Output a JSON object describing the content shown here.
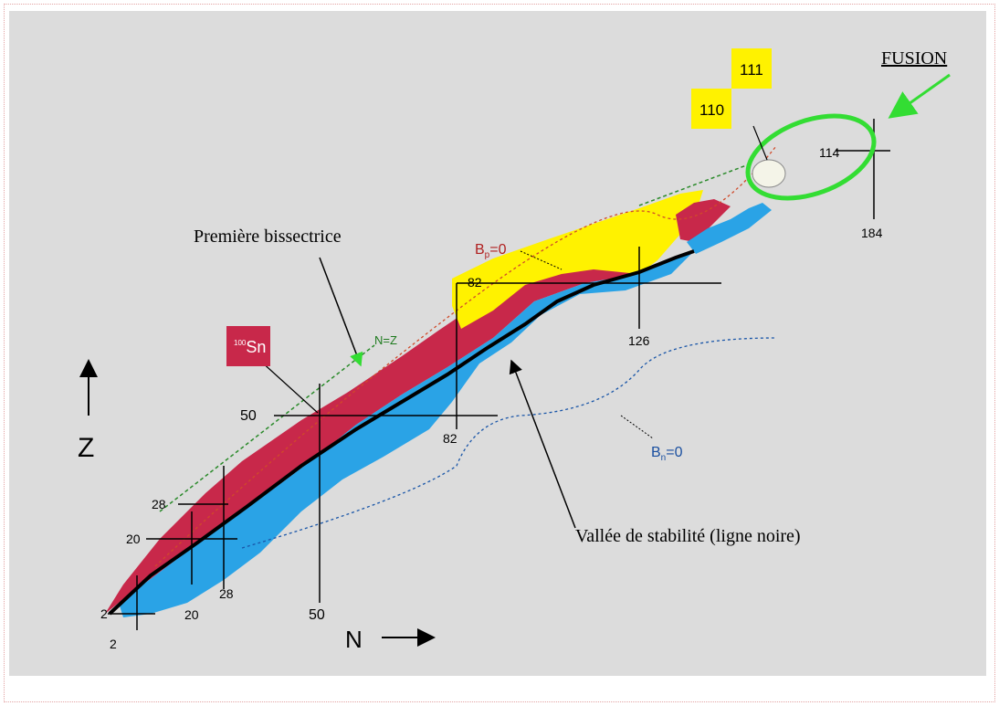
{
  "labels": {
    "fusion": "FUSION",
    "premiere_bissectrice": "Première bissectrice",
    "vallee": "Vallée de stabilité (ligne noire)",
    "z_axis": "Z",
    "n_axis": "N",
    "nz": "N=Z",
    "bp_main": "B",
    "bp_sub": "p",
    "bp_eq": "=0",
    "bn_main": "B",
    "bn_sub": "n",
    "bn_eq": "=0",
    "sn_mass": "100",
    "sn_symbol": "Sn",
    "box_110": "110",
    "box_111": "111"
  },
  "magic_numbers": {
    "z_2": "2",
    "z_20": "20",
    "z_28": "28",
    "z_50": "50",
    "z_82": "82",
    "z_114": "114",
    "n_2": "2",
    "n_20": "20",
    "n_28": "28",
    "n_50": "50",
    "n_82": "82",
    "n_126": "126",
    "n_184": "184"
  },
  "colors": {
    "background": "#dcdcdc",
    "proton_rich": "#c8284a",
    "neutron_rich": "#2aa3e6",
    "superheavy": "#fff200",
    "stability_line": "#000000",
    "fusion_ellipse": "#33dd33",
    "sn_box": "#c8284a"
  }
}
